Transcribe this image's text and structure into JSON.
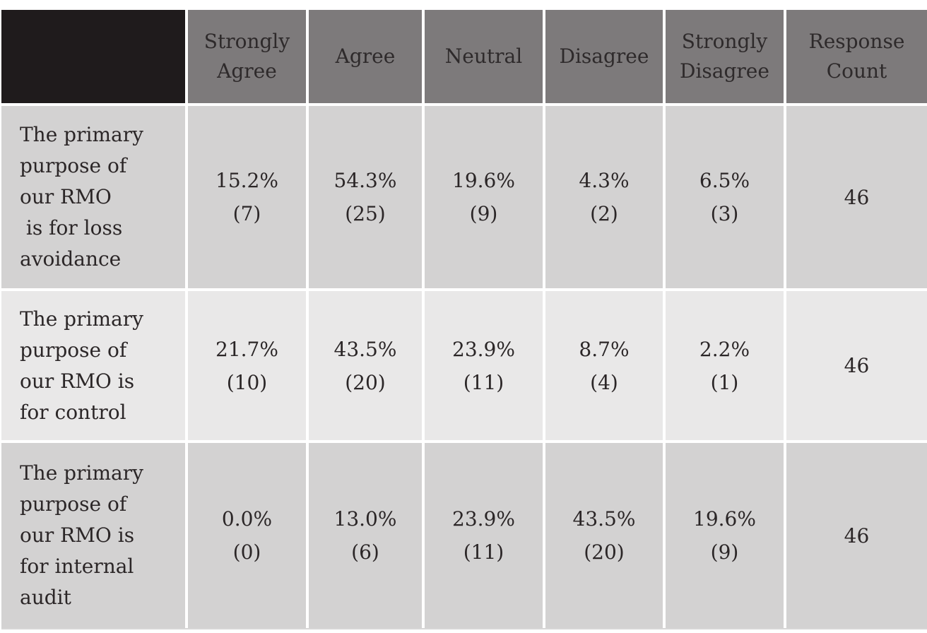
{
  "colors": {
    "corner_cell_bg": "#1f1b1c",
    "header_bg": "#7d7a7b",
    "header_text": "#2e2a2b",
    "row_odd_bg": "#d3d2d2",
    "row_even_bg": "#e9e8e8",
    "body_text": "#2b2627",
    "grid_lines": "#ffffff",
    "page_bg": "#ffffff"
  },
  "survey_table": {
    "header": {
      "corner_label": "",
      "columns": [
        "Strongly Agree",
        "Agree",
        "Neutral",
        "Disagree",
        "Strongly Disagree",
        "Response Count"
      ]
    },
    "rows": [
      {
        "question": "The primary purpose of our RMO\n is for loss avoidance",
        "answers": [
          {
            "pct": "15.2%",
            "count": "(7)"
          },
          {
            "pct": "54.3%",
            "count": "(25)"
          },
          {
            "pct": "19.6%",
            "count": "(9)"
          },
          {
            "pct": "4.3%",
            "count": "(2)"
          },
          {
            "pct": "6.5%",
            "count": "(3)"
          }
        ],
        "response_count": "46"
      },
      {
        "question": "The primary purpose of our RMO is for control",
        "answers": [
          {
            "pct": "21.7%",
            "count": "(10)"
          },
          {
            "pct": "43.5%",
            "count": "(20)"
          },
          {
            "pct": "23.9%",
            "count": "(11)"
          },
          {
            "pct": "8.7%",
            "count": "(4)"
          },
          {
            "pct": "2.2%",
            "count": "(1)"
          }
        ],
        "response_count": "46"
      },
      {
        "question": "The primary purpose of our RMO is for internal audit",
        "answers": [
          {
            "pct": "0.0%",
            "count": "(0)"
          },
          {
            "pct": "13.0%",
            "count": "(6)"
          },
          {
            "pct": "23.9%",
            "count": "(11)"
          },
          {
            "pct": "43.5%",
            "count": "(20)"
          },
          {
            "pct": "19.6%",
            "count": "(9)"
          }
        ],
        "response_count": "46"
      }
    ]
  },
  "chart_data": {
    "type": "table",
    "columns": [
      "",
      "Strongly Agree",
      "Agree",
      "Neutral",
      "Disagree",
      "Strongly Disagree",
      "Response Count"
    ],
    "rows": [
      {
        "label": "The primary purpose of our RMO is for loss avoidance",
        "strongly_agree_pct": 15.2,
        "strongly_agree_n": 7,
        "agree_pct": 54.3,
        "agree_n": 25,
        "neutral_pct": 19.6,
        "neutral_n": 9,
        "disagree_pct": 4.3,
        "disagree_n": 2,
        "strongly_disagree_pct": 6.5,
        "strongly_disagree_n": 3,
        "response_count": 46
      },
      {
        "label": "The primary purpose of our RMO is for control",
        "strongly_agree_pct": 21.7,
        "strongly_agree_n": 10,
        "agree_pct": 43.5,
        "agree_n": 20,
        "neutral_pct": 23.9,
        "neutral_n": 11,
        "disagree_pct": 8.7,
        "disagree_n": 4,
        "strongly_disagree_pct": 2.2,
        "strongly_disagree_n": 1,
        "response_count": 46
      },
      {
        "label": "The primary purpose of our RMO is for internal audit",
        "strongly_agree_pct": 0.0,
        "strongly_agree_n": 0,
        "agree_pct": 13.0,
        "agree_n": 6,
        "neutral_pct": 23.9,
        "neutral_n": 11,
        "disagree_pct": 43.5,
        "disagree_n": 20,
        "strongly_disagree_pct": 19.6,
        "strongly_disagree_n": 9,
        "response_count": 46
      }
    ]
  }
}
